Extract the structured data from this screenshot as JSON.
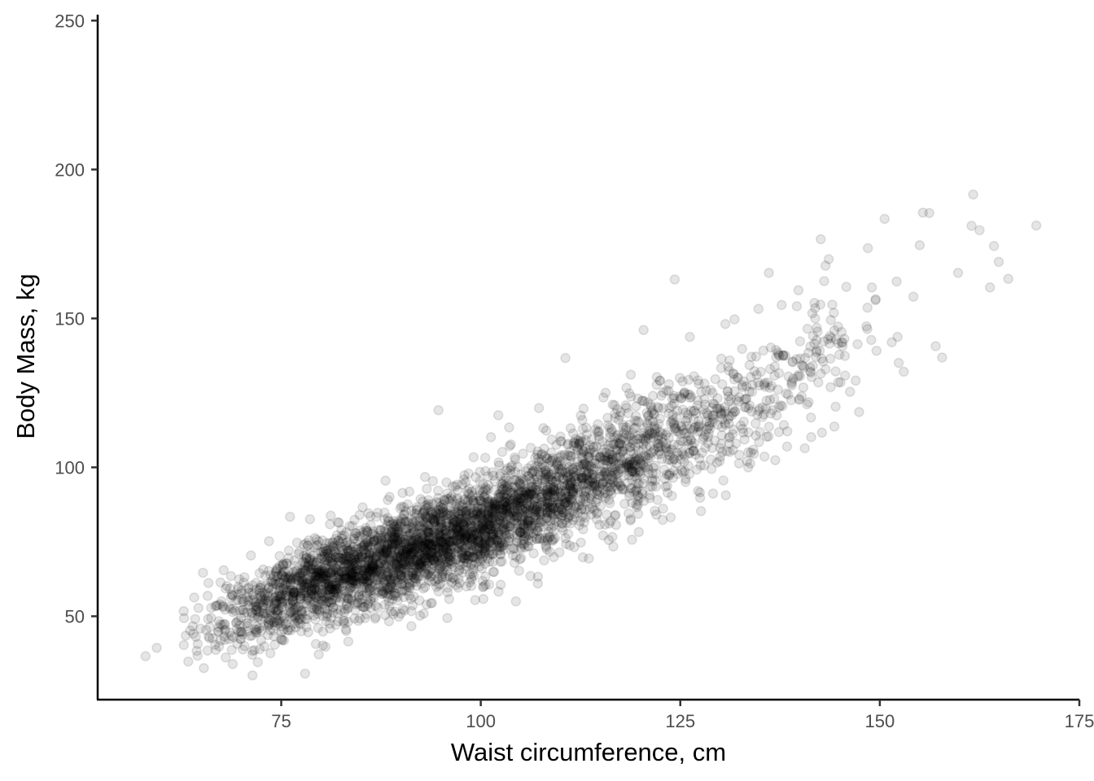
{
  "chart_data": {
    "type": "scatter",
    "title": "",
    "xlabel": "Waist circumference, cm",
    "ylabel": "Body Mass, kg",
    "xlim": [
      52,
      175
    ],
    "ylim": [
      22,
      252
    ],
    "x_ticks": [
      75,
      100,
      125,
      150,
      175
    ],
    "y_ticks": [
      50,
      100,
      150,
      200,
      250
    ],
    "x_tick_labels": [
      "75",
      "100",
      "125",
      "150",
      "175"
    ],
    "y_tick_labels": [
      "50",
      "100",
      "150",
      "200",
      "250"
    ],
    "grid": false,
    "legend": "none",
    "point_color": "#000000",
    "point_opacity": 0.1,
    "points": [
      [
        58.0,
        36.6
      ],
      [
        59.4,
        39.4
      ],
      [
        63.6,
        45.2
      ],
      [
        64.1,
        56.3
      ],
      [
        64.4,
        38.4
      ],
      [
        65.2,
        64.6
      ],
      [
        65.3,
        32.6
      ],
      [
        65.9,
        43.2
      ],
      [
        66.8,
        38.7
      ],
      [
        68.2,
        60.2
      ],
      [
        69.5,
        40.7
      ],
      [
        70.4,
        40.0
      ],
      [
        71.2,
        70.4
      ],
      [
        72.3,
        38.9
      ],
      [
        73.4,
        47.0
      ],
      [
        74.8,
        66.9
      ],
      [
        76.1,
        83.4
      ],
      [
        78.6,
        82.6
      ],
      [
        79.7,
        37.2
      ],
      [
        81.2,
        83.8
      ],
      [
        83.1,
        45.6
      ],
      [
        85.2,
        86.6
      ],
      [
        88.5,
        48.3
      ],
      [
        90.2,
        91.4
      ],
      [
        92.4,
        50.2
      ],
      [
        94.7,
        119.2
      ],
      [
        95.8,
        49.4
      ],
      [
        99.1,
        103.4
      ],
      [
        102.2,
        117.5
      ],
      [
        104.4,
        55.0
      ],
      [
        107.3,
        119.9
      ],
      [
        110.6,
        136.7
      ],
      [
        112.8,
        69.8
      ],
      [
        116.6,
        73.4
      ],
      [
        118.8,
        131.1
      ],
      [
        119.8,
        78.3
      ],
      [
        120.4,
        146.1
      ],
      [
        123.8,
        83.2
      ],
      [
        124.3,
        163.1
      ],
      [
        126.2,
        143.8
      ],
      [
        127.6,
        85.3
      ],
      [
        129.1,
        91.2
      ],
      [
        130.4,
        95.6
      ],
      [
        131.8,
        149.7
      ],
      [
        133.5,
        100.0
      ],
      [
        134.8,
        153.2
      ],
      [
        136.1,
        165.3
      ],
      [
        136.9,
        102.4
      ],
      [
        137.7,
        154.5
      ],
      [
        139.6,
        154.1
      ],
      [
        140.6,
        106.4
      ],
      [
        141.8,
        155.2
      ],
      [
        142.6,
        176.6
      ],
      [
        143.2,
        167.7
      ],
      [
        143.6,
        169.9
      ],
      [
        144.3,
        113.7
      ],
      [
        145.8,
        160.6
      ],
      [
        147.4,
        118.6
      ],
      [
        148.5,
        173.6
      ],
      [
        149.0,
        160.4
      ],
      [
        150.6,
        183.4
      ],
      [
        151.5,
        142.0
      ],
      [
        152.1,
        162.4
      ],
      [
        153.0,
        132.1
      ],
      [
        154.2,
        157.3
      ],
      [
        155.0,
        174.6
      ],
      [
        155.4,
        185.5
      ],
      [
        156.2,
        185.4
      ],
      [
        157.0,
        140.7
      ],
      [
        157.8,
        136.9
      ],
      [
        159.8,
        165.3
      ],
      [
        161.5,
        181.1
      ],
      [
        161.7,
        191.6
      ],
      [
        162.5,
        179.6
      ],
      [
        163.8,
        160.4
      ],
      [
        164.3,
        174.3
      ],
      [
        164.9,
        169.0
      ],
      [
        166.1,
        163.3
      ],
      [
        169.6,
        181.2
      ]
    ],
    "cloud": {
      "note_hidden": false,
      "centers": [
        [
          70,
          52
        ],
        [
          75,
          56
        ],
        [
          80,
          62
        ],
        [
          85,
          66
        ],
        [
          90,
          70
        ],
        [
          95,
          75
        ],
        [
          100,
          80
        ],
        [
          105,
          86
        ],
        [
          110,
          92
        ],
        [
          115,
          98
        ],
        [
          120,
          105
        ],
        [
          125,
          111
        ],
        [
          130,
          118
        ],
        [
          135,
          124
        ],
        [
          140,
          131
        ],
        [
          145,
          138
        ]
      ],
      "spread": [
        [
          3.5,
          8
        ],
        [
          3.5,
          8
        ],
        [
          3.5,
          9
        ],
        [
          3.5,
          9
        ],
        [
          3.5,
          10
        ],
        [
          3.5,
          10
        ],
        [
          3.5,
          10
        ],
        [
          3.5,
          11
        ],
        [
          3.5,
          11
        ],
        [
          3.5,
          12
        ],
        [
          3.5,
          12
        ],
        [
          3.5,
          12
        ],
        [
          3.5,
          12
        ],
        [
          3.5,
          12
        ],
        [
          3.5,
          12
        ],
        [
          3.5,
          12
        ]
      ],
      "counts": [
        120,
        260,
        380,
        430,
        460,
        470,
        440,
        380,
        320,
        260,
        200,
        150,
        110,
        80,
        55,
        35
      ]
    }
  }
}
